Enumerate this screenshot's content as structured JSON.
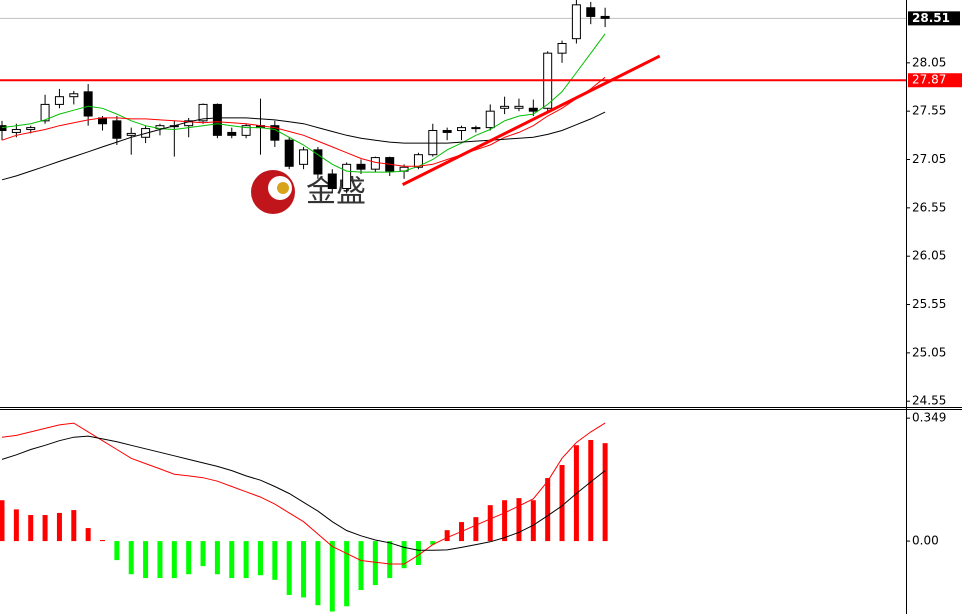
{
  "chart_data": [
    {
      "type": "candlestick",
      "open": [
        27.4,
        27.33,
        27.36,
        27.45,
        27.62,
        27.7,
        27.75,
        27.48,
        27.45,
        27.3,
        27.28,
        27.37,
        27.4,
        27.4,
        27.45,
        27.62,
        27.33,
        27.3,
        27.4,
        27.4,
        27.25,
        27.0,
        27.15,
        26.9,
        26.75,
        27.0,
        26.95,
        27.07,
        26.93,
        26.97,
        27.1,
        27.35,
        27.35,
        27.37,
        27.38,
        27.58,
        27.58,
        27.58,
        27.58,
        28.15,
        28.3,
        28.62,
        28.53
      ],
      "high": [
        27.45,
        27.42,
        27.4,
        27.72,
        27.78,
        27.76,
        27.83,
        27.5,
        27.5,
        27.38,
        27.4,
        27.42,
        27.45,
        27.48,
        27.63,
        27.63,
        27.38,
        27.42,
        27.68,
        27.45,
        27.28,
        27.18,
        27.18,
        26.95,
        27.02,
        27.05,
        27.08,
        27.08,
        27.0,
        27.12,
        27.42,
        27.38,
        27.4,
        27.4,
        27.62,
        27.7,
        27.68,
        27.67,
        28.17,
        28.28,
        28.75,
        28.68,
        28.62
      ],
      "low": [
        27.25,
        27.28,
        27.32,
        27.42,
        27.58,
        27.62,
        27.4,
        27.35,
        27.2,
        27.1,
        27.22,
        27.3,
        27.08,
        27.28,
        27.42,
        27.27,
        27.27,
        27.27,
        27.1,
        27.18,
        26.95,
        26.95,
        26.85,
        26.7,
        26.7,
        26.9,
        26.92,
        26.88,
        26.85,
        26.95,
        27.08,
        27.25,
        27.25,
        27.33,
        27.35,
        27.52,
        27.55,
        27.5,
        27.55,
        28.05,
        28.25,
        28.45,
        28.42
      ],
      "close": [
        27.35,
        27.36,
        27.38,
        27.62,
        27.7,
        27.73,
        27.5,
        27.42,
        27.27,
        27.32,
        27.37,
        27.4,
        27.4,
        27.45,
        27.62,
        27.3,
        27.3,
        27.4,
        27.38,
        27.25,
        26.98,
        27.15,
        26.9,
        26.75,
        27.0,
        26.95,
        27.07,
        26.93,
        26.97,
        27.1,
        27.35,
        27.33,
        27.38,
        27.38,
        27.55,
        27.6,
        27.6,
        27.55,
        28.15,
        28.25,
        28.65,
        28.53,
        28.51
      ],
      "up_color": "#ffffff",
      "down_color": "#000000",
      "series": [
        {
          "color": "#00c000",
          "values": [
            27.38,
            27.4,
            27.42,
            27.46,
            27.52,
            27.56,
            27.6,
            27.58,
            27.52,
            27.45,
            27.4,
            27.37,
            27.36,
            27.38,
            27.4,
            27.42,
            27.4,
            27.38,
            27.38,
            27.36,
            27.28,
            27.2,
            27.1,
            27.0,
            26.93,
            26.92,
            26.92,
            26.92,
            26.93,
            26.98,
            27.05,
            27.15,
            27.22,
            27.3,
            27.36,
            27.45,
            27.5,
            27.52,
            27.62,
            27.75,
            27.95,
            28.15,
            28.35
          ]
        },
        {
          "color": "#ff0000",
          "values": [
            27.25,
            27.3,
            27.33,
            27.36,
            27.4,
            27.43,
            27.46,
            27.48,
            27.48,
            27.47,
            27.47,
            27.46,
            27.45,
            27.44,
            27.43,
            27.44,
            27.43,
            27.42,
            27.4,
            27.38,
            27.34,
            27.3,
            27.24,
            27.18,
            27.12,
            27.06,
            27.02,
            27.0,
            26.98,
            26.98,
            27.0,
            27.05,
            27.1,
            27.15,
            27.2,
            27.28,
            27.33,
            27.4,
            27.5,
            27.58,
            27.68,
            27.78,
            27.9
          ]
        },
        {
          "color": "#000000",
          "values": [
            26.84,
            26.88,
            26.93,
            26.98,
            27.03,
            27.08,
            27.13,
            27.18,
            27.23,
            27.28,
            27.32,
            27.36,
            27.4,
            27.44,
            27.47,
            27.48,
            27.48,
            27.48,
            27.47,
            27.46,
            27.44,
            27.42,
            27.38,
            27.34,
            27.3,
            27.27,
            27.25,
            27.23,
            27.22,
            27.22,
            27.22,
            27.22,
            27.23,
            27.24,
            27.25,
            27.26,
            27.27,
            27.28,
            27.31,
            27.35,
            27.41,
            27.47,
            27.54
          ]
        }
      ],
      "ylim": [
        24.49,
        28.7
      ],
      "yticks": [
        28.05,
        27.55,
        27.05,
        26.55,
        26.05,
        25.55,
        25.05,
        24.55
      ],
      "current_price": 28.51,
      "current_price_color": "#000000",
      "hline": 27.87,
      "hline_color": "#ff0000",
      "trendline": {
        "x": [
          27.9,
          45.8
        ],
        "y": [
          26.79,
          28.12
        ],
        "color": "#ff0000"
      },
      "watermark": "金盛"
    },
    {
      "type": "macd",
      "histogram": [
        0.116,
        0.09,
        0.074,
        0.074,
        0.08,
        0.088,
        0.037,
        0.003,
        -0.054,
        -0.094,
        -0.105,
        -0.105,
        -0.105,
        -0.094,
        -0.071,
        -0.094,
        -0.105,
        -0.105,
        -0.097,
        -0.11,
        -0.153,
        -0.16,
        -0.182,
        -0.2,
        -0.185,
        -0.139,
        -0.125,
        -0.105,
        -0.077,
        -0.068,
        -0.01,
        0.031,
        0.054,
        0.068,
        0.102,
        0.116,
        0.122,
        0.116,
        0.179,
        0.216,
        0.272,
        0.287,
        0.278
      ],
      "positive_color": "#ff0000",
      "negative_color": "#00ff00",
      "series": [
        {
          "color": "#ff0000",
          "values": [
            0.295,
            0.3,
            0.31,
            0.32,
            0.33,
            0.335,
            0.31,
            0.285,
            0.26,
            0.235,
            0.22,
            0.205,
            0.19,
            0.185,
            0.18,
            0.17,
            0.155,
            0.14,
            0.125,
            0.105,
            0.08,
            0.055,
            0.02,
            -0.015,
            -0.035,
            -0.055,
            -0.06,
            -0.065,
            -0.065,
            -0.04,
            -0.01,
            0.01,
            0.027,
            0.045,
            0.063,
            0.08,
            0.1,
            0.12,
            0.17,
            0.235,
            0.28,
            0.31,
            0.335
          ]
        },
        {
          "color": "#000000",
          "values": [
            0.232,
            0.245,
            0.26,
            0.272,
            0.285,
            0.295,
            0.298,
            0.29,
            0.282,
            0.272,
            0.262,
            0.252,
            0.242,
            0.232,
            0.222,
            0.212,
            0.2,
            0.185,
            0.173,
            0.155,
            0.135,
            0.11,
            0.085,
            0.055,
            0.03,
            0.015,
            0.003,
            -0.005,
            -0.018,
            -0.026,
            -0.026,
            -0.025,
            -0.018,
            -0.01,
            -0.002,
            0.01,
            0.025,
            0.045,
            0.072,
            0.1,
            0.135,
            0.168,
            0.2
          ]
        }
      ],
      "ylim": [
        -0.207,
        0.375
      ],
      "yticks": [
        0.349,
        {
          "value": 0,
          "label": "0.00"
        }
      ]
    }
  ]
}
